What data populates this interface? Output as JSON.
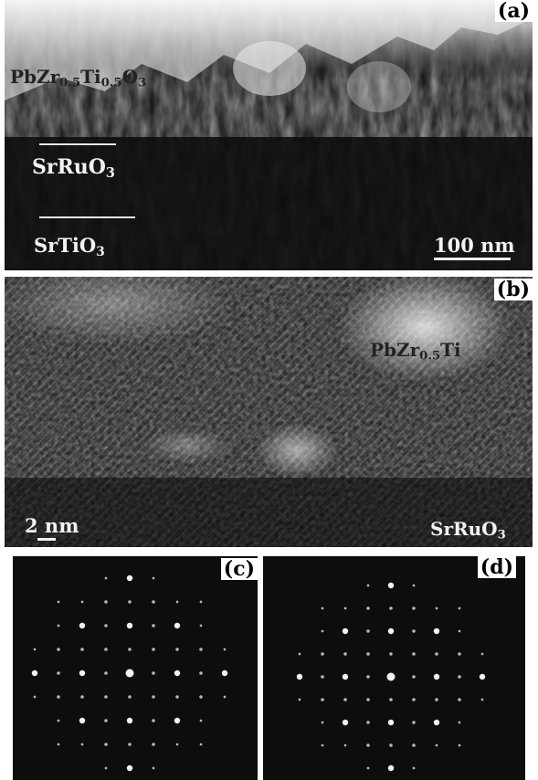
{
  "panels": {
    "a": {
      "tag": "(a)",
      "film": {
        "pre": "PbZr",
        "s1": "0.5",
        "mid": "Ti",
        "s2": "0.5",
        "post": "O",
        "s3": "3"
      },
      "electrode": {
        "pre": "SrRuO",
        "sub": "3"
      },
      "substrate": {
        "pre": "SrTiO",
        "sub": "3"
      },
      "scale": "100 nm"
    },
    "b": {
      "tag": "(b)",
      "film": {
        "pre": "PbZr",
        "s1": "0.5",
        "mid": "Ti"
      },
      "scale": "2 nm",
      "electrode": {
        "pre": "SrRuO",
        "sub": "3"
      }
    },
    "c": {
      "tag": "(c)"
    },
    "d": {
      "tag": "(d)"
    }
  },
  "colors": {
    "background": "#0d0d0d",
    "frame": "#ffffff",
    "text": "#f2f2f2"
  }
}
